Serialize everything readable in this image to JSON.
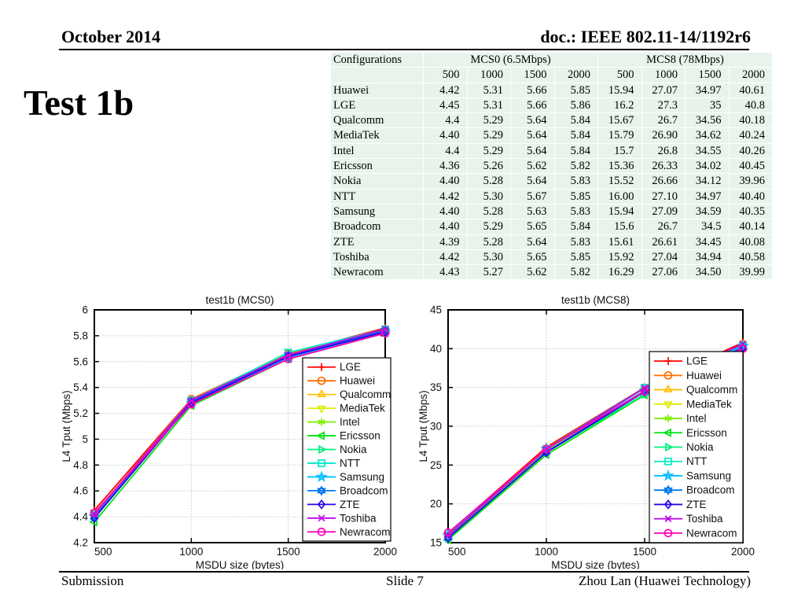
{
  "header": {
    "date": "October 2014",
    "doc": "doc.: IEEE 802.11-14/1192r6"
  },
  "title": "Test 1b",
  "table": {
    "corner_label": "Configurations",
    "groups": [
      {
        "label": "MCS0 (6.5Mbps)"
      },
      {
        "label": "MCS8 (78Mbps)"
      }
    ],
    "sub_headers": [
      "500",
      "1000",
      "1500",
      "2000",
      "500",
      "1000",
      "1500",
      "2000"
    ],
    "rows": [
      {
        "name": "Huawei",
        "values": [
          "4.42",
          "5.31",
          "5.66",
          "5.85",
          "15.94",
          "27.07",
          "34.97",
          "40.61"
        ]
      },
      {
        "name": "LGE",
        "values": [
          "4.45",
          "5.31",
          "5.66",
          "5.86",
          "16.2",
          "27.3",
          "35",
          "40.8"
        ]
      },
      {
        "name": "Qualcomm",
        "values": [
          "4.4",
          "5.29",
          "5.64",
          "5.84",
          "15.67",
          "26.7",
          "34.56",
          "40.18"
        ]
      },
      {
        "name": "MediaTek",
        "values": [
          "4.40",
          "5.29",
          "5.64",
          "5.84",
          "15.79",
          "26.90",
          "34.62",
          "40.24"
        ]
      },
      {
        "name": "Intel",
        "values": [
          "4.4",
          "5.29",
          "5.64",
          "5.84",
          "15.7",
          "26.8",
          "34.55",
          "40.26"
        ]
      },
      {
        "name": "Ericsson",
        "values": [
          "4.36",
          "5.26",
          "5.62",
          "5.82",
          "15.36",
          "26.33",
          "34.02",
          "40.45"
        ]
      },
      {
        "name": "Nokia",
        "values": [
          "4.40",
          "5.28",
          "5.64",
          "5.83",
          "15.52",
          "26.66",
          "34.12",
          "39.96"
        ]
      },
      {
        "name": "NTT",
        "values": [
          "4.42",
          "5.30",
          "5.67",
          "5.85",
          "16.00",
          "27.10",
          "34.97",
          "40.40"
        ]
      },
      {
        "name": "Samsung",
        "values": [
          "4.40",
          "5.28",
          "5.63",
          "5.83",
          "15.94",
          "27.09",
          "34.59",
          "40.35"
        ]
      },
      {
        "name": "Broadcom",
        "values": [
          "4.40",
          "5.29",
          "5.65",
          "5.84",
          "15.6",
          "26.7",
          "34.5",
          "40.14"
        ]
      },
      {
        "name": "ZTE",
        "values": [
          "4.39",
          "5.28",
          "5.64",
          "5.83",
          "15.61",
          "26.61",
          "34.45",
          "40.08"
        ]
      },
      {
        "name": "Toshiba",
        "values": [
          "4.42",
          "5.30",
          "5.65",
          "5.85",
          "15.92",
          "27.04",
          "34.94",
          "40.58"
        ]
      },
      {
        "name": "Newracom",
        "values": [
          "4.43",
          "5.27",
          "5.62",
          "5.82",
          "16.29",
          "27.06",
          "34.50",
          "39.99"
        ]
      }
    ]
  },
  "vendor_styles": {
    "LGE": {
      "color": "#FF0000",
      "marker": "plus"
    },
    "Huawei": {
      "color": "#FF6F00",
      "marker": "circle"
    },
    "Qualcomm": {
      "color": "#FFBF00",
      "marker": "triangle-up"
    },
    "MediaTek": {
      "color": "#DCEB00",
      "marker": "triangle-down"
    },
    "Intel": {
      "color": "#7DF000",
      "marker": "asterisk"
    },
    "Ericsson": {
      "color": "#00E312",
      "marker": "triangle-left"
    },
    "Nokia": {
      "color": "#00F07D",
      "marker": "triangle-right"
    },
    "NTT": {
      "color": "#00EBC8",
      "marker": "square"
    },
    "Samsung": {
      "color": "#00BFFF",
      "marker": "star5"
    },
    "Broadcom": {
      "color": "#0077F0",
      "marker": "star6"
    },
    "ZTE": {
      "color": "#2404E8",
      "marker": "diamond"
    },
    "Toshiba": {
      "color": "#BC00F0",
      "marker": "x"
    },
    "Newracom": {
      "color": "#FF00B4",
      "marker": "circle"
    }
  },
  "chart_data": [
    {
      "type": "line",
      "title": "test1b (MCS0)",
      "xlabel": "MSDU size (bytes)",
      "ylabel": "L4 Tput (Mbps)",
      "x": [
        500,
        1000,
        1500,
        2000
      ],
      "xtick_labels": [
        "500",
        "1000",
        "1500",
        "2000"
      ],
      "xlim": [
        500,
        2000
      ],
      "ylim": [
        4.2,
        6
      ],
      "ytick_labels": [
        "4.2",
        "4.4",
        "4.6",
        "4.8",
        "5",
        "5.2",
        "5.4",
        "5.6",
        "5.8",
        "6"
      ],
      "grid": true,
      "legend_position": "inside-right",
      "series": [
        {
          "name": "LGE",
          "values": [
            4.45,
            5.31,
            5.66,
            5.86
          ]
        },
        {
          "name": "Huawei",
          "values": [
            4.42,
            5.31,
            5.66,
            5.85
          ]
        },
        {
          "name": "Qualcomm",
          "values": [
            4.4,
            5.29,
            5.64,
            5.84
          ]
        },
        {
          "name": "MediaTek",
          "values": [
            4.4,
            5.29,
            5.64,
            5.84
          ]
        },
        {
          "name": "Intel",
          "values": [
            4.4,
            5.29,
            5.64,
            5.84
          ]
        },
        {
          "name": "Ericsson",
          "values": [
            4.36,
            5.26,
            5.62,
            5.82
          ]
        },
        {
          "name": "Nokia",
          "values": [
            4.4,
            5.28,
            5.64,
            5.83
          ]
        },
        {
          "name": "NTT",
          "values": [
            4.42,
            5.3,
            5.67,
            5.85
          ]
        },
        {
          "name": "Samsung",
          "values": [
            4.4,
            5.28,
            5.63,
            5.83
          ]
        },
        {
          "name": "Broadcom",
          "values": [
            4.4,
            5.29,
            5.65,
            5.84
          ]
        },
        {
          "name": "ZTE",
          "values": [
            4.39,
            5.28,
            5.64,
            5.83
          ]
        },
        {
          "name": "Toshiba",
          "values": [
            4.42,
            5.3,
            5.65,
            5.85
          ]
        },
        {
          "name": "Newracom",
          "values": [
            4.43,
            5.27,
            5.62,
            5.82
          ]
        }
      ]
    },
    {
      "type": "line",
      "title": "test1b (MCS8)",
      "xlabel": "MSDU size (bytes)",
      "ylabel": "L4 Tput (Mbps)",
      "x": [
        500,
        1000,
        1500,
        2000
      ],
      "xtick_labels": [
        "500",
        "1000",
        "1500",
        "2000"
      ],
      "xlim": [
        500,
        2000
      ],
      "ylim": [
        15,
        45
      ],
      "ytick_labels": [
        "15",
        "20",
        "25",
        "30",
        "35",
        "40",
        "45"
      ],
      "grid": true,
      "legend_position": "inside-right",
      "series": [
        {
          "name": "LGE",
          "values": [
            16.2,
            27.3,
            35,
            40.8
          ]
        },
        {
          "name": "Huawei",
          "values": [
            15.94,
            27.07,
            34.97,
            40.61
          ]
        },
        {
          "name": "Qualcomm",
          "values": [
            15.67,
            26.7,
            34.56,
            40.18
          ]
        },
        {
          "name": "MediaTek",
          "values": [
            15.79,
            26.9,
            34.62,
            40.24
          ]
        },
        {
          "name": "Intel",
          "values": [
            15.7,
            26.8,
            34.55,
            40.26
          ]
        },
        {
          "name": "Ericsson",
          "values": [
            15.36,
            26.33,
            34.02,
            40.45
          ]
        },
        {
          "name": "Nokia",
          "values": [
            15.52,
            26.66,
            34.12,
            39.96
          ]
        },
        {
          "name": "NTT",
          "values": [
            16.0,
            27.1,
            34.97,
            40.4
          ]
        },
        {
          "name": "Samsung",
          "values": [
            15.94,
            27.09,
            34.59,
            40.35
          ]
        },
        {
          "name": "Broadcom",
          "values": [
            15.6,
            26.7,
            34.5,
            40.14
          ]
        },
        {
          "name": "ZTE",
          "values": [
            15.61,
            26.61,
            34.45,
            40.08
          ]
        },
        {
          "name": "Toshiba",
          "values": [
            15.92,
            27.04,
            34.94,
            40.58
          ]
        },
        {
          "name": "Newracom",
          "values": [
            16.29,
            27.06,
            34.5,
            39.99
          ]
        }
      ]
    }
  ],
  "footer": {
    "left": "Submission",
    "center": "Slide 7",
    "right": "Zhou Lan (Huawei Technology)"
  }
}
